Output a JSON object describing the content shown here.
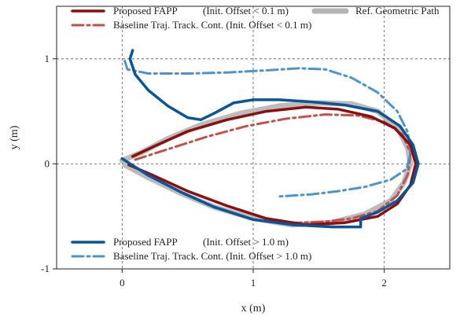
{
  "chart_data": {
    "type": "line",
    "xlabel": "x (m)",
    "ylabel": "y (m)",
    "xlim": [
      -0.5,
      2.5
    ],
    "ylim": [
      -1.0,
      1.5
    ],
    "xticks": [
      {
        "v": 0,
        "label": "0"
      },
      {
        "v": 1,
        "label": "1"
      },
      {
        "v": 2,
        "label": "2"
      }
    ],
    "yticks": [
      {
        "v": -1,
        "label": "-1"
      },
      {
        "v": 0,
        "label": "0"
      },
      {
        "v": 1,
        "label": "1"
      }
    ],
    "grid": true,
    "series": [
      {
        "key": "ref",
        "name": "Ref. Geometric Path",
        "color": "#b5b5b5",
        "style": "solid",
        "width": 7,
        "points": [
          [
            0.0,
            0.03
          ],
          [
            0.15,
            0.11
          ],
          [
            0.35,
            0.24
          ],
          [
            0.6,
            0.37
          ],
          [
            0.9,
            0.48
          ],
          [
            1.2,
            0.55
          ],
          [
            1.5,
            0.58
          ],
          [
            1.75,
            0.57
          ],
          [
            1.95,
            0.5
          ],
          [
            2.1,
            0.35
          ],
          [
            2.18,
            0.15
          ],
          [
            2.2,
            0.0
          ],
          [
            2.15,
            -0.18
          ],
          [
            2.05,
            -0.35
          ],
          [
            1.85,
            -0.48
          ],
          [
            1.6,
            -0.56
          ],
          [
            1.3,
            -0.58
          ],
          [
            1.0,
            -0.52
          ],
          [
            0.7,
            -0.41
          ],
          [
            0.45,
            -0.28
          ],
          [
            0.2,
            -0.13
          ],
          [
            0.02,
            -0.01
          ]
        ]
      },
      {
        "key": "fapp_small",
        "name": "Proposed FAPP",
        "color": "#8b0f0f",
        "style": "solid",
        "width": 3.5,
        "points": [
          [
            0.08,
            0.07
          ],
          [
            0.25,
            0.17
          ],
          [
            0.5,
            0.31
          ],
          [
            0.8,
            0.42
          ],
          [
            1.1,
            0.5
          ],
          [
            1.4,
            0.54
          ],
          [
            1.65,
            0.52
          ],
          [
            1.9,
            0.45
          ],
          [
            2.08,
            0.34
          ],
          [
            2.2,
            0.18
          ],
          [
            2.24,
            0.0
          ],
          [
            2.2,
            -0.2
          ],
          [
            2.1,
            -0.38
          ],
          [
            1.95,
            -0.5
          ],
          [
            1.7,
            -0.56
          ],
          [
            1.4,
            -0.58
          ],
          [
            1.1,
            -0.52
          ],
          [
            0.8,
            -0.4
          ],
          [
            0.5,
            -0.26
          ],
          [
            0.22,
            -0.1
          ],
          [
            0.05,
            -0.01
          ]
        ]
      },
      {
        "key": "base_small",
        "name": "Baseline Traj. Track. Cont.",
        "color": "#c0524e",
        "style": "dashdot",
        "width": 3,
        "points": [
          [
            0.1,
            0.04
          ],
          [
            0.35,
            0.14
          ],
          [
            0.65,
            0.26
          ],
          [
            0.95,
            0.36
          ],
          [
            1.25,
            0.43
          ],
          [
            1.55,
            0.47
          ],
          [
            1.8,
            0.46
          ],
          [
            2.0,
            0.4
          ],
          [
            2.14,
            0.28
          ],
          [
            2.2,
            0.1
          ],
          [
            2.18,
            -0.1
          ],
          [
            2.1,
            -0.3
          ],
          [
            1.95,
            -0.45
          ],
          [
            1.75,
            -0.52
          ],
          [
            1.55,
            -0.55
          ],
          [
            1.35,
            -0.56
          ],
          [
            1.2,
            -0.56
          ]
        ]
      },
      {
        "key": "fapp_large",
        "name": "Proposed FAPP",
        "color": "#0a5596",
        "style": "solid",
        "width": 3.5,
        "points": [
          [
            0.08,
            1.08
          ],
          [
            0.06,
            1.0
          ],
          [
            0.1,
            0.85
          ],
          [
            0.2,
            0.7
          ],
          [
            0.35,
            0.55
          ],
          [
            0.5,
            0.44
          ],
          [
            0.6,
            0.42
          ],
          [
            0.7,
            0.48
          ],
          [
            0.85,
            0.58
          ],
          [
            1.0,
            0.61
          ],
          [
            1.2,
            0.61
          ],
          [
            1.45,
            0.59
          ],
          [
            1.7,
            0.56
          ],
          [
            1.95,
            0.5
          ],
          [
            2.12,
            0.36
          ],
          [
            2.22,
            0.18
          ],
          [
            2.26,
            0.0
          ],
          [
            2.22,
            -0.18
          ],
          [
            2.1,
            -0.35
          ],
          [
            1.95,
            -0.46
          ],
          [
            1.82,
            -0.52
          ],
          [
            1.82,
            -0.6
          ],
          [
            1.6,
            -0.6
          ],
          [
            1.3,
            -0.58
          ],
          [
            1.0,
            -0.53
          ],
          [
            0.7,
            -0.41
          ],
          [
            0.45,
            -0.27
          ],
          [
            0.2,
            -0.11
          ],
          [
            0.0,
            0.05
          ]
        ]
      },
      {
        "key": "base_large",
        "name": "Baseline Traj. Track. Cont.",
        "color": "#4f94c8",
        "style": "dashdot",
        "width": 3,
        "points": [
          [
            0.02,
            0.98
          ],
          [
            0.04,
            0.9
          ],
          [
            0.2,
            0.86
          ],
          [
            0.5,
            0.86
          ],
          [
            0.8,
            0.87
          ],
          [
            1.1,
            0.89
          ],
          [
            1.35,
            0.91
          ],
          [
            1.55,
            0.9
          ],
          [
            1.75,
            0.82
          ],
          [
            1.95,
            0.68
          ],
          [
            2.1,
            0.5
          ],
          [
            2.18,
            0.3
          ],
          [
            2.2,
            0.1
          ],
          [
            2.17,
            -0.05
          ],
          [
            2.05,
            -0.15
          ],
          [
            1.85,
            -0.22
          ],
          [
            1.65,
            -0.26
          ],
          [
            1.45,
            -0.29
          ],
          [
            1.2,
            -0.31
          ]
        ]
      }
    ],
    "legend_top": [
      {
        "series": "fapp_small",
        "label": "Proposed FAPP",
        "note": "(Init. Offset < 0.1 m)"
      },
      {
        "series": "ref",
        "label": "Ref. Geometric Path",
        "note": ""
      },
      {
        "series": "base_small",
        "label": "Baseline Traj. Track. Cont. (Init. Offset < 0.1 m)",
        "note": ""
      }
    ],
    "legend_bottom": [
      {
        "series": "fapp_large",
        "label": "Proposed FAPP",
        "note": "(Init. Offset > 1.0 m)"
      },
      {
        "series": "base_large",
        "label": "Baseline Traj. Track. Cont. (Init. Offset > 1.0 m)",
        "note": ""
      }
    ]
  }
}
